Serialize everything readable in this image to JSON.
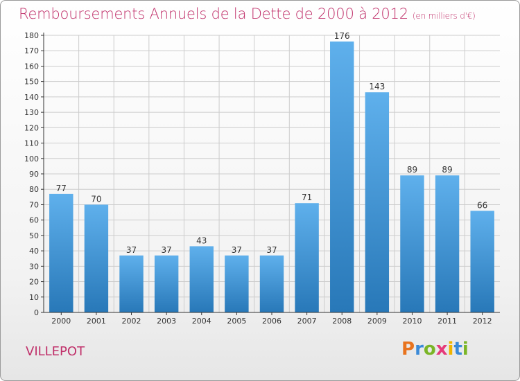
{
  "title": "Remboursements Annuels de la Dette de 2000 à 2012",
  "subtitle": "(en milliers d'€)",
  "commune": "VILLEPOT",
  "logo": {
    "letters": [
      "P",
      "r",
      "o",
      "x",
      "i",
      "t",
      "i"
    ],
    "colors": [
      "#e8731e",
      "#3a8ad8",
      "#7ab526",
      "#e63a7a",
      "#f0b400",
      "#3a8ad8",
      "#7ab526"
    ]
  },
  "colors": {
    "bar_top": "#5fb0ec",
    "bar_bottom": "#2878b8",
    "grid": "#cccccc",
    "axis": "#333333",
    "accent": "#c0306a"
  },
  "chart_data": {
    "type": "bar",
    "categories": [
      "2000",
      "2001",
      "2002",
      "2003",
      "2004",
      "2005",
      "2006",
      "2007",
      "2008",
      "2009",
      "2010",
      "2011",
      "2012"
    ],
    "values": [
      77,
      70,
      37,
      37,
      43,
      37,
      37,
      71,
      176,
      143,
      89,
      89,
      66
    ],
    "title": "Remboursements Annuels de la Dette de 2000 à 2012",
    "xlabel": "",
    "ylabel": "",
    "ylim": [
      0,
      180
    ],
    "yticks": [
      0,
      10,
      20,
      30,
      40,
      50,
      60,
      70,
      80,
      90,
      100,
      110,
      120,
      130,
      140,
      150,
      160,
      170,
      180
    ],
    "grid": true,
    "data_labels": true
  }
}
